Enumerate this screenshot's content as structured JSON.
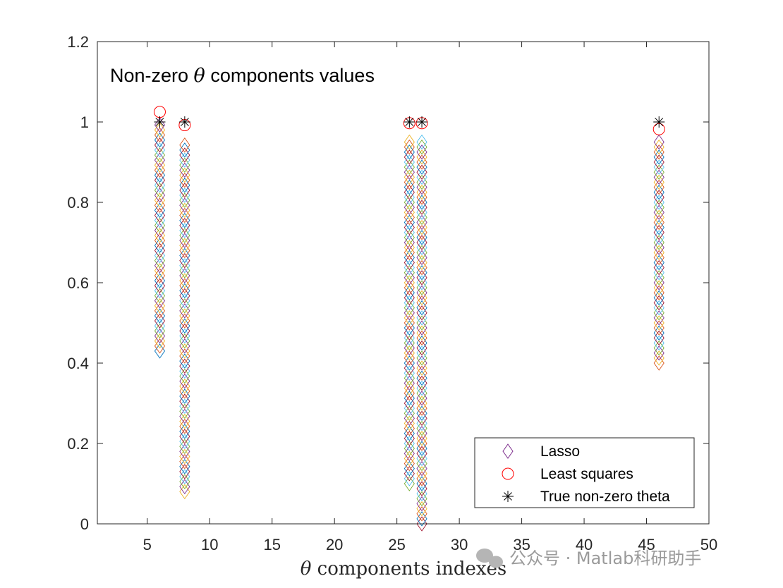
{
  "chart_data": {
    "type": "scatter",
    "title_prefix": "Non-zero ",
    "title_symbol": "θ",
    "title_suffix": " components values",
    "xlabel_symbol": "θ",
    "xlabel_text": " components indexes",
    "ylabel": "",
    "xlim": [
      1,
      50
    ],
    "ylim": [
      0,
      1.2
    ],
    "xticks": [
      5,
      10,
      15,
      20,
      25,
      30,
      35,
      40,
      45,
      50
    ],
    "yticks": [
      0,
      0.2,
      0.4,
      0.6,
      0.8,
      1,
      1.2
    ],
    "ytick_labels": [
      "0",
      "0.2",
      "0.4",
      "0.6",
      "0.8",
      "1",
      "1.2"
    ],
    "grid": false,
    "legend_position": "bottom-right",
    "series": [
      {
        "name": "Lasso",
        "marker": "diamond",
        "note": "coefficient path values over many regularization levels",
        "paths": [
          {
            "x": 6,
            "min": 0.43,
            "max": 1.0,
            "step": 0.0125
          },
          {
            "x": 8,
            "min": 0.08,
            "max": 0.95,
            "step": 0.0125
          },
          {
            "x": 26,
            "min": 0.1,
            "max": 0.95,
            "step": 0.0125
          },
          {
            "x": 27,
            "min": 0.0,
            "max": 0.95,
            "step": 0.0125
          },
          {
            "x": 46,
            "min": 0.4,
            "max": 0.96,
            "step": 0.0125
          }
        ]
      },
      {
        "name": "Least squares",
        "marker": "circle",
        "color": "#ff0000",
        "x": [
          6,
          8,
          26,
          27,
          46
        ],
        "y": [
          1.025,
          0.992,
          0.997,
          0.997,
          0.982
        ]
      },
      {
        "name": "True non-zero theta",
        "marker": "asterisk",
        "color": "#000000",
        "x": [
          6,
          8,
          26,
          27,
          46
        ],
        "y": [
          1,
          1,
          1,
          1,
          1
        ]
      }
    ],
    "lasso_colors": [
      "#0072bd",
      "#d95319",
      "#edb120",
      "#7e2f8e",
      "#77ac30",
      "#4dbeee",
      "#a2142f"
    ]
  },
  "watermark": {
    "text": "公众号 · Matlab科研助手",
    "icon": "wechat-icon"
  }
}
